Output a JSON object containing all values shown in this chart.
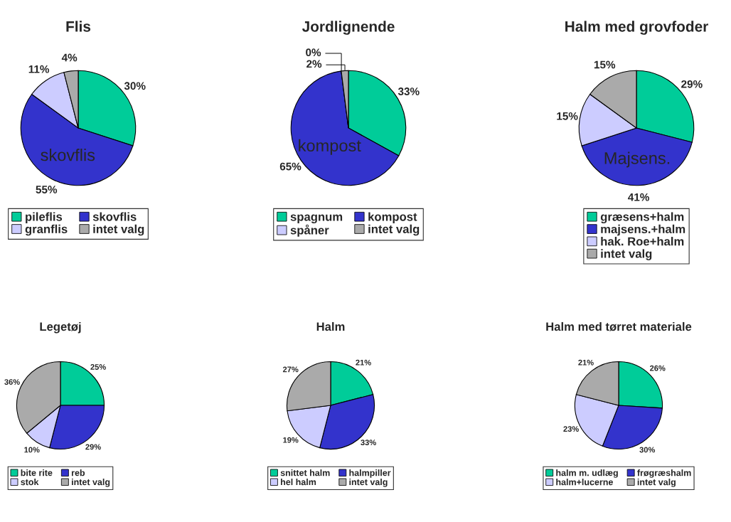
{
  "chart_data": [
    {
      "type": "pie",
      "title": "Flis",
      "categories": [
        "pileflis",
        "skovflis",
        "granflis",
        "intet valg"
      ],
      "values": [
        30,
        55,
        11,
        4
      ],
      "colors": [
        "#00cc99",
        "#3333cc",
        "#ccccff",
        "#aaaaaa"
      ],
      "value_labels": [
        "30%",
        "55%",
        "11%",
        "4%"
      ],
      "annotations": [
        {
          "text": "skovflis",
          "x": "skovflis"
        }
      ],
      "legend": "bottom"
    },
    {
      "type": "pie",
      "title": "Jordlignende",
      "categories": [
        "spagnum",
        "kompost",
        "spåner",
        "intet valg"
      ],
      "values": [
        33,
        65,
        0,
        2
      ],
      "colors": [
        "#00cc99",
        "#3333cc",
        "#ccccff",
        "#aaaaaa"
      ],
      "value_labels": [
        "33%",
        "65%",
        "0%",
        "2%"
      ],
      "annotations": [
        {
          "text": "kompost",
          "x": "kompost"
        }
      ],
      "legend": "bottom"
    },
    {
      "type": "pie",
      "title": "Halm med grovfoder",
      "categories": [
        "græsens+halm",
        "majsens.+halm",
        "hak. Roe+halm",
        "intet valg"
      ],
      "values": [
        29,
        41,
        15,
        15
      ],
      "colors": [
        "#00cc99",
        "#3333cc",
        "#ccccff",
        "#aaaaaa"
      ],
      "value_labels": [
        "29%",
        "41%",
        "15%",
        "15%"
      ],
      "annotations": [
        {
          "text": "Majsens.",
          "x": "majsens.+halm"
        }
      ],
      "legend": "bottom"
    },
    {
      "type": "pie",
      "title": "Legetøj",
      "categories": [
        "bite rite",
        "reb",
        "stok",
        "intet valg"
      ],
      "values": [
        25,
        29,
        10,
        36
      ],
      "colors": [
        "#00cc99",
        "#3333cc",
        "#ccccff",
        "#aaaaaa"
      ],
      "value_labels": [
        "25%",
        "29%",
        "10%",
        "36%"
      ],
      "legend": "bottom"
    },
    {
      "type": "pie",
      "title": "Halm",
      "categories": [
        "snittet halm",
        "halmpiller",
        "hel halm",
        "intet valg"
      ],
      "values": [
        21,
        33,
        19,
        27
      ],
      "colors": [
        "#00cc99",
        "#3333cc",
        "#ccccff",
        "#aaaaaa"
      ],
      "value_labels": [
        "21%",
        "33%",
        "19%",
        "27%"
      ],
      "legend": "bottom"
    },
    {
      "type": "pie",
      "title": "Halm med tørret materiale",
      "categories": [
        "halm m. udlæg",
        "frøgræshalm",
        "halm+lucerne",
        "intet valg"
      ],
      "values": [
        26,
        30,
        23,
        21
      ],
      "colors": [
        "#00cc99",
        "#3333cc",
        "#ccccff",
        "#aaaaaa"
      ],
      "value_labels": [
        "26%",
        "30%",
        "23%",
        "21%"
      ],
      "legend": "bottom"
    }
  ]
}
